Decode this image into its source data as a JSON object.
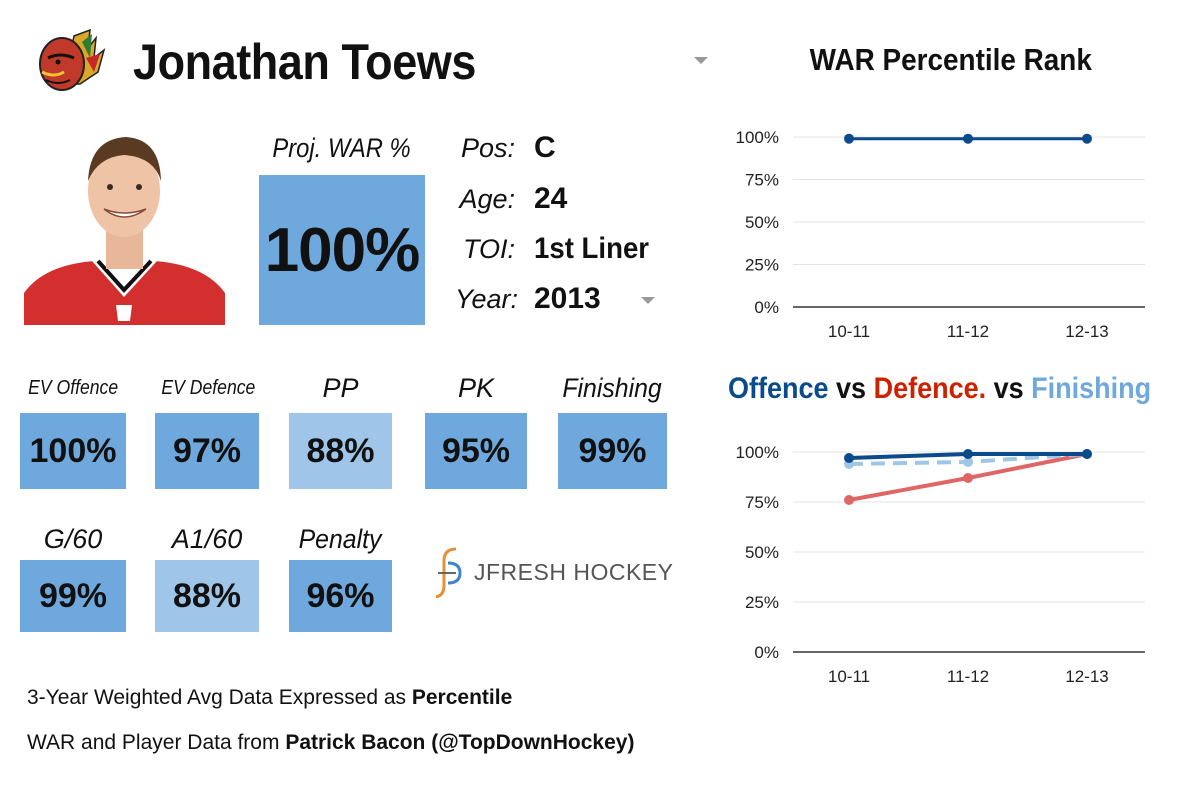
{
  "player": {
    "name": "Jonathan Toews",
    "proj_war_label": "Proj. WAR %",
    "proj_war_value": "100%",
    "info": [
      {
        "label": "Pos:",
        "value": "C"
      },
      {
        "label": "Age:",
        "value": "24"
      },
      {
        "label": "TOI:",
        "value": "1st Liner"
      },
      {
        "label": "Year:",
        "value": "2013"
      }
    ]
  },
  "stats": [
    {
      "label": "EV Offence",
      "value": "100%",
      "shade": "dark"
    },
    {
      "label": "EV Defence",
      "value": "97%",
      "shade": "dark"
    },
    {
      "label": "PP",
      "value": "88%",
      "shade": "light"
    },
    {
      "label": "PK",
      "value": "95%",
      "shade": "dark"
    },
    {
      "label": "Finishing",
      "value": "99%",
      "shade": "dark"
    },
    {
      "label": "G/60",
      "value": "99%",
      "shade": "dark"
    },
    {
      "label": "A1/60",
      "value": "88%",
      "shade": "light"
    },
    {
      "label": "Penalty",
      "value": "96%",
      "shade": "dark"
    }
  ],
  "brand": {
    "text": "JFRESH HOCKEY"
  },
  "footer": {
    "line1_prefix": "3-Year Weighted Avg Data Expressed as ",
    "line1_bold": "Percentile",
    "line2_prefix": "WAR and Player Data from ",
    "line2_bold": "Patrick Bacon (@TopDownHockey)"
  },
  "colors": {
    "tile_dark": "#6fa8dc",
    "tile_light": "#9fc5e8",
    "offence": "#0b4a8b",
    "defence": "#e06666",
    "finishing": "#9fc5e8",
    "title_offence": "#0b4a8b",
    "title_defence": "#cc2200",
    "title_finishing": "#6fa8dc"
  },
  "chart_data": [
    {
      "type": "line",
      "title": "WAR Percentile Rank",
      "categories": [
        "10-11",
        "11-12",
        "12-13"
      ],
      "series": [
        {
          "values": [
            99,
            99,
            99
          ]
        }
      ],
      "yticks": [
        "100%",
        "75%",
        "50%",
        "25%",
        "0%"
      ],
      "ylim": [
        0,
        100
      ],
      "grid": true
    },
    {
      "type": "line",
      "title_parts": [
        "Offence",
        " vs ",
        "Defence.",
        " vs ",
        "Finishing"
      ],
      "categories": [
        "10-11",
        "11-12",
        "12-13"
      ],
      "series": [
        {
          "key": "offence",
          "values": [
            97,
            99,
            99
          ]
        },
        {
          "key": "defence",
          "values": [
            76,
            87,
            99
          ]
        },
        {
          "key": "finishing",
          "values": [
            94,
            95,
            99
          ],
          "style": "dashed"
        }
      ],
      "yticks": [
        "100%",
        "75%",
        "50%",
        "25%",
        "0%"
      ],
      "ylim": [
        0,
        100
      ],
      "grid": true
    }
  ]
}
